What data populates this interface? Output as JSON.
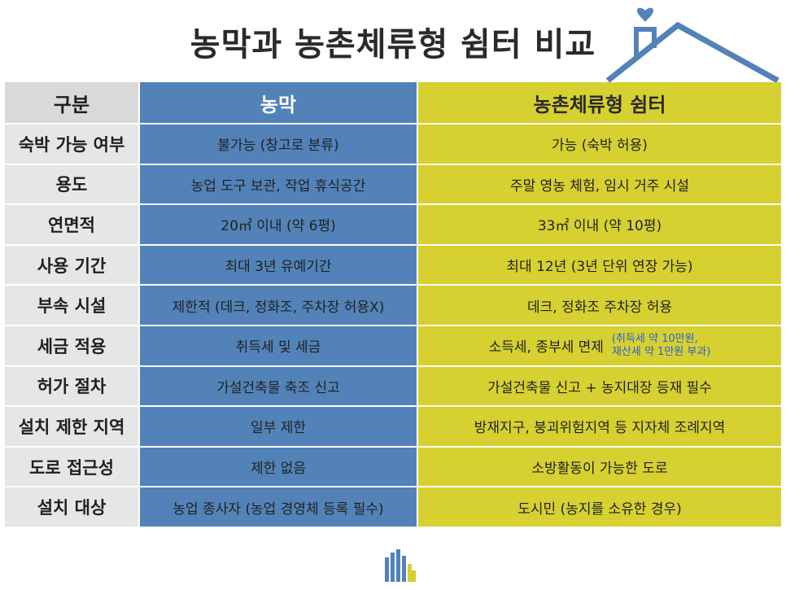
{
  "title": "농막과 농촌체류형 쉼터 비교",
  "colors": {
    "label_bg": "#e6e6e6",
    "farm_bg": "#5282b8",
    "shelter_bg": "#d6d031",
    "note": "#2f5fd0",
    "house": "#5282b8"
  },
  "table": {
    "headers": [
      "구분",
      "농막",
      "농촌체류형 쉼터"
    ],
    "rows": [
      {
        "label": "숙박 가능 여부",
        "farm": "불가능 (창고로 분류)",
        "shelter": "가능 (숙박 허용)"
      },
      {
        "label": "용도",
        "farm": "농업 도구 보관, 작업 휴식공간",
        "shelter": "주말 영농 체험, 임시 거주 시설"
      },
      {
        "label": "연면적",
        "farm": "20㎡ 이내 (약 6평)",
        "shelter": "33㎡ 이내 (약 10평)"
      },
      {
        "label": "사용 기간",
        "farm": "최대 3년 유예기간",
        "shelter": "최대 12년 (3년 단위 연장 가능)"
      },
      {
        "label": "부속 시설",
        "farm": "제한적 (데크, 정화조, 주차장 허용X)",
        "shelter": "데크, 정화조 주차장 허용"
      },
      {
        "label": "세금 적용",
        "farm": "취득세 및 세금",
        "shelter": "소득세, 종부세 면제",
        "note_line1": "(취득세 약 10만원,",
        "note_line2": "재산세 약 1만원 부과)"
      },
      {
        "label": "허가 절차",
        "farm": "가설건축물 축조 신고",
        "shelter": "가설건축물 신고 + 농지대장 등재 필수"
      },
      {
        "label": "설치 제한 지역",
        "farm": "일부 제한",
        "shelter": "방재지구, 붕괴위험지역 등 지자체 조례지역"
      },
      {
        "label": "도로 접근성",
        "farm": "제한 없음",
        "shelter": "소방활동이 가능한 도로"
      },
      {
        "label": "설치 대상",
        "farm": "농업 종사자 (농업 경영체 등록 필수)",
        "shelter": "도시민 (농지를 소유한 경우)"
      }
    ]
  },
  "icons": {
    "house": "house-heart-icon",
    "logo": "building-logo-icon"
  }
}
